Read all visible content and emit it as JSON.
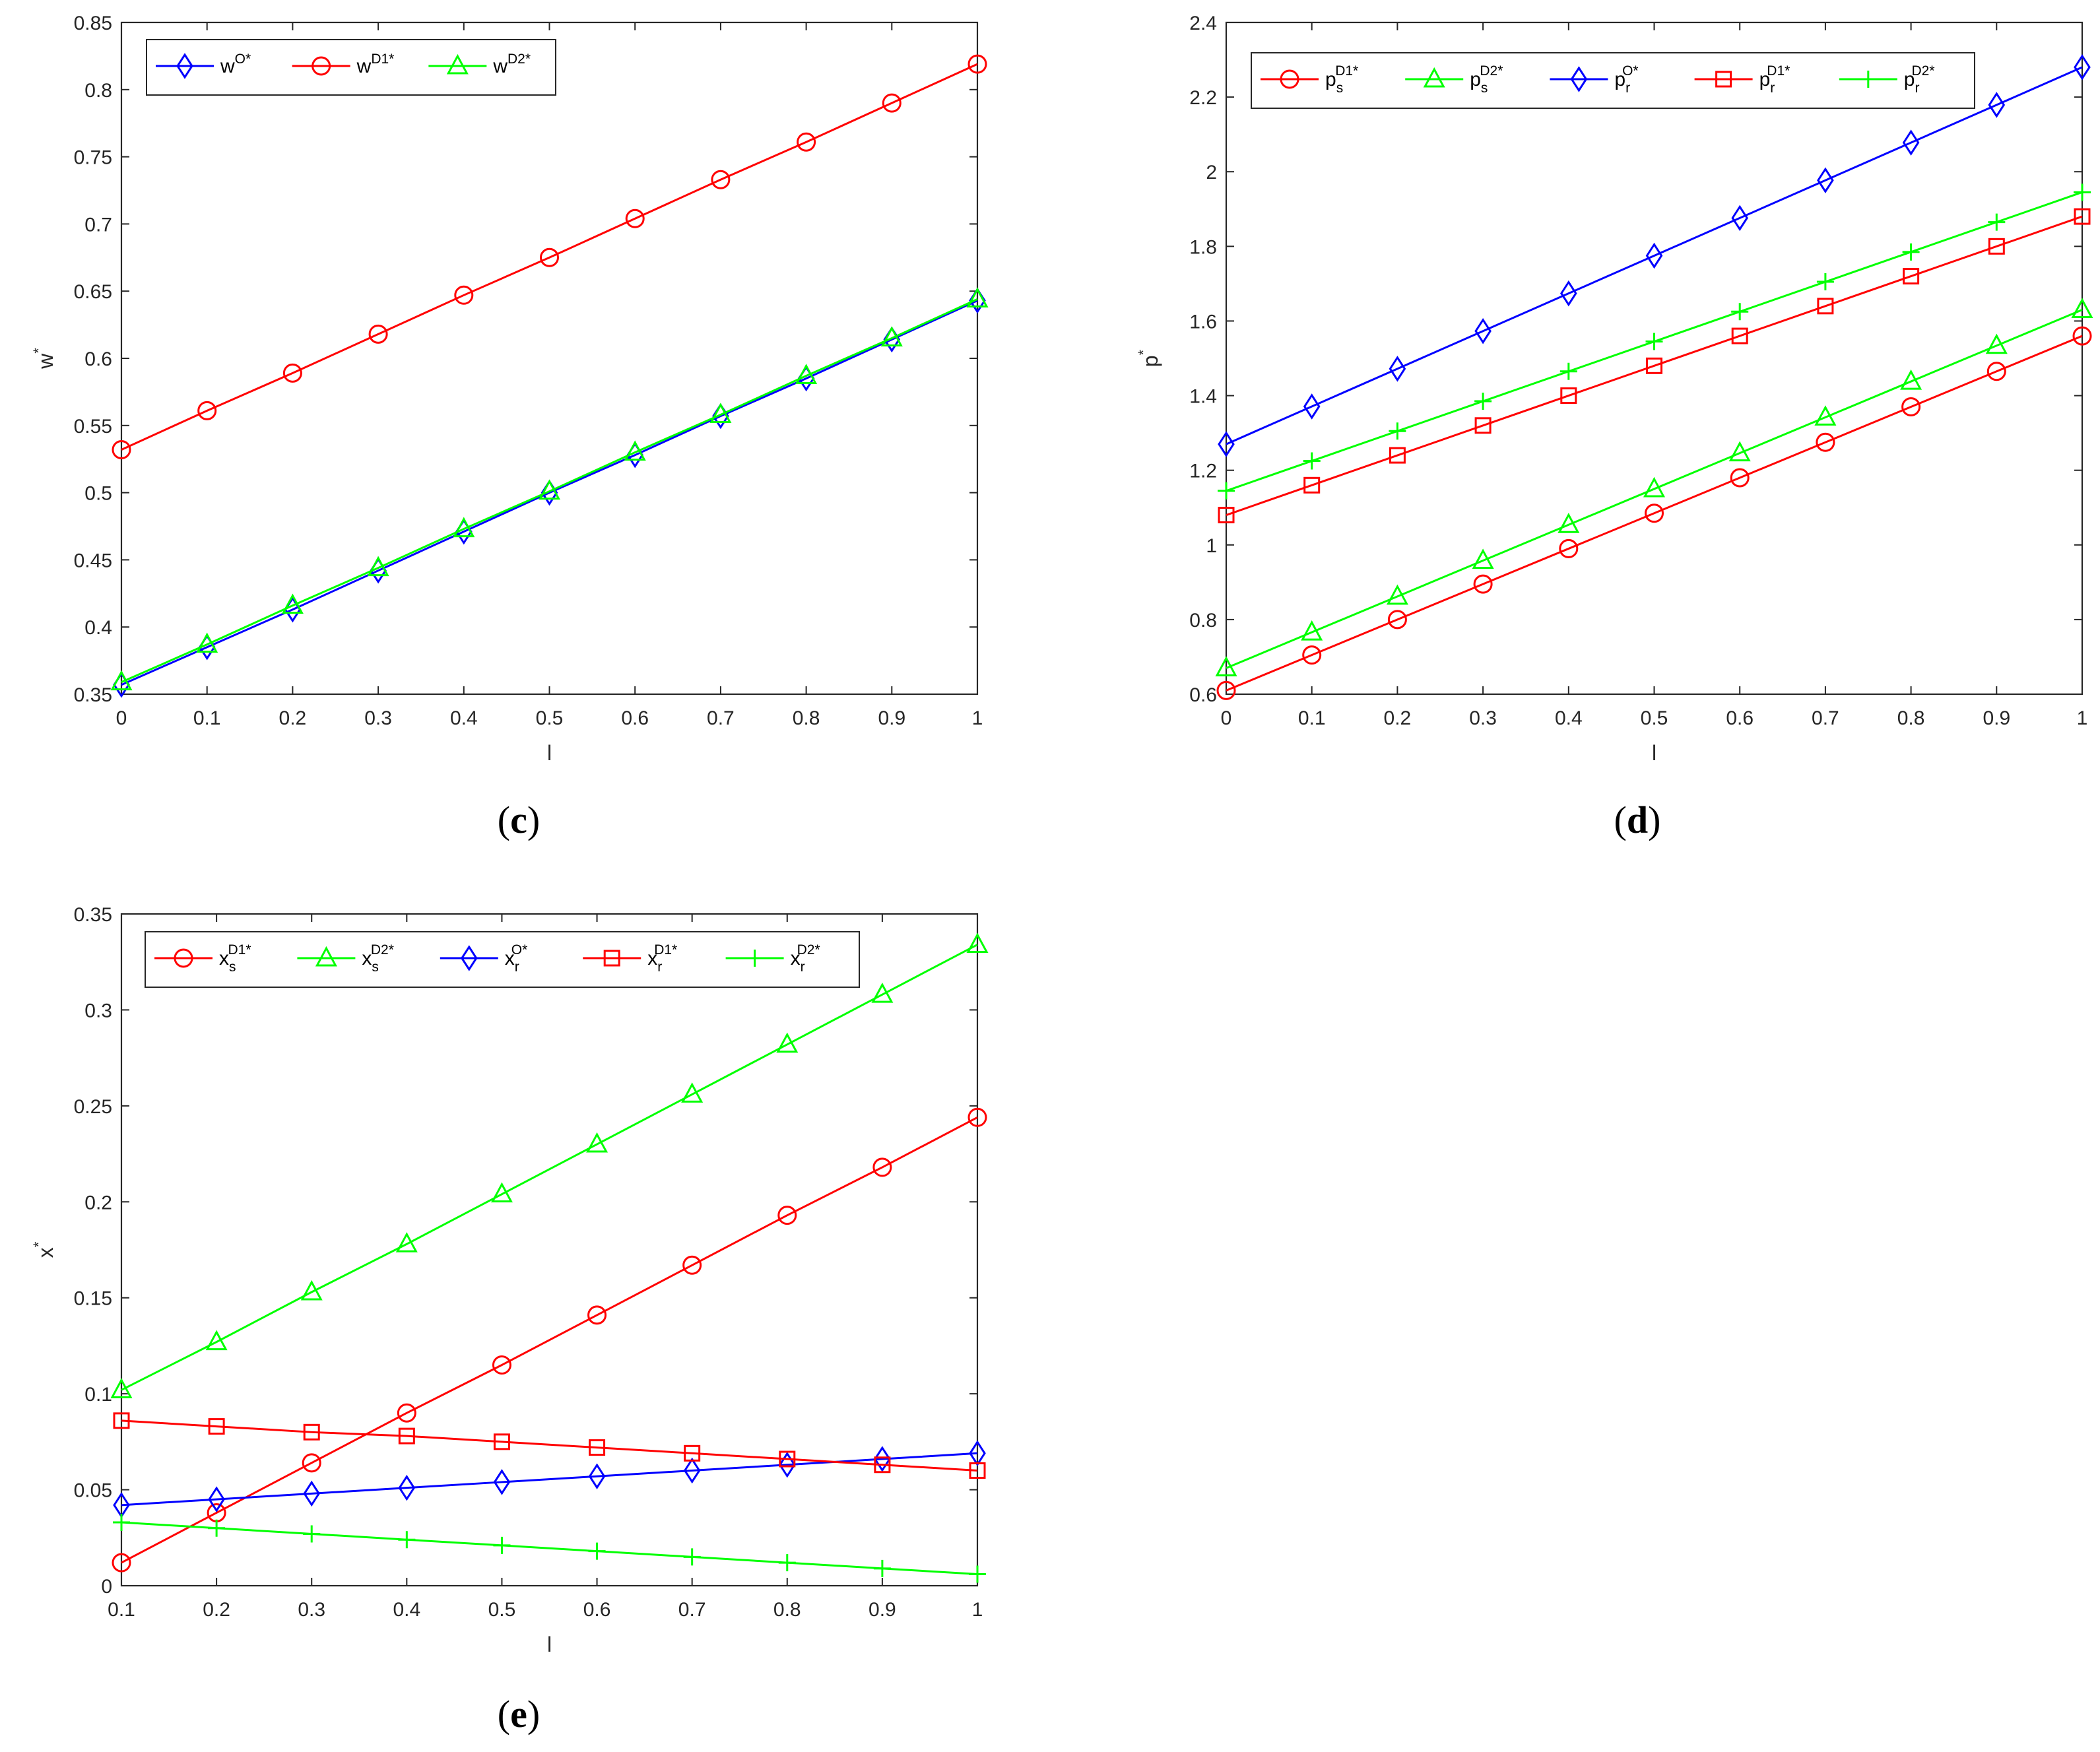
{
  "chart_data": [
    {
      "id": "c",
      "type": "line",
      "panel_label": "c",
      "xlabel": "l",
      "ylabel": "w",
      "ylabel_sup": "*",
      "xlim": [
        0,
        1
      ],
      "ylim": [
        0.35,
        0.85
      ],
      "xticks": [
        "0",
        "0.1",
        "0.2",
        "0.3",
        "0.4",
        "0.5",
        "0.6",
        "0.7",
        "0.8",
        "0.9",
        "1"
      ],
      "yticks": [
        "0.35",
        "0.4",
        "0.45",
        "0.5",
        "0.55",
        "0.6",
        "0.65",
        "0.7",
        "0.75",
        "0.8",
        "0.85"
      ],
      "legend_position": "top-left",
      "x": [
        0,
        0.1,
        0.2,
        0.3,
        0.4,
        0.5,
        0.6,
        0.7,
        0.8,
        0.9,
        1
      ],
      "series": [
        {
          "name": "w^{O*}",
          "label": {
            "base": "w",
            "sup": "O*",
            "sub": ""
          },
          "color": "#0000ff",
          "marker": "diamond",
          "values": [
            0.357,
            0.385,
            0.413,
            0.442,
            0.471,
            0.5,
            0.528,
            0.557,
            0.585,
            0.614,
            0.643
          ]
        },
        {
          "name": "w^{D1*}",
          "label": {
            "base": "w",
            "sup": "D1*",
            "sub": ""
          },
          "color": "#ff0000",
          "marker": "circle",
          "values": [
            0.532,
            0.561,
            0.589,
            0.618,
            0.647,
            0.675,
            0.704,
            0.733,
            0.761,
            0.79,
            0.819
          ]
        },
        {
          "name": "w^{D2*}",
          "label": {
            "base": "w",
            "sup": "D2*",
            "sub": ""
          },
          "color": "#00ff00",
          "marker": "triangle",
          "values": [
            0.359,
            0.387,
            0.416,
            0.444,
            0.473,
            0.501,
            0.53,
            0.558,
            0.587,
            0.615,
            0.644
          ]
        }
      ]
    },
    {
      "id": "d",
      "type": "line",
      "panel_label": "d",
      "xlabel": "l",
      "ylabel": "p",
      "ylabel_sup": "*",
      "xlim": [
        0,
        1
      ],
      "ylim": [
        0.6,
        2.4
      ],
      "xticks": [
        "0",
        "0.1",
        "0.2",
        "0.3",
        "0.4",
        "0.5",
        "0.6",
        "0.7",
        "0.8",
        "0.9",
        "1"
      ],
      "yticks": [
        "0.6",
        "0.8",
        "1",
        "1.2",
        "1.4",
        "1.6",
        "1.8",
        "2",
        "2.2",
        "2.4"
      ],
      "legend_position": "top-left",
      "x": [
        0,
        0.1,
        0.2,
        0.3,
        0.4,
        0.5,
        0.6,
        0.7,
        0.8,
        0.9,
        1
      ],
      "series": [
        {
          "name": "p_s^{D1*}",
          "label": {
            "base": "p",
            "sup": "D1*",
            "sub": "s"
          },
          "color": "#ff0000",
          "marker": "circle",
          "values": [
            0.61,
            0.705,
            0.8,
            0.895,
            0.99,
            1.085,
            1.18,
            1.275,
            1.37,
            1.465,
            1.56
          ]
        },
        {
          "name": "p_s^{D2*}",
          "label": {
            "base": "p",
            "sup": "D2*",
            "sub": "s"
          },
          "color": "#00ff00",
          "marker": "triangle",
          "values": [
            0.67,
            0.766,
            0.862,
            0.958,
            1.054,
            1.15,
            1.246,
            1.342,
            1.438,
            1.534,
            1.63
          ]
        },
        {
          "name": "p_r^{O*}",
          "label": {
            "base": "p",
            "sup": "O*",
            "sub": "r"
          },
          "color": "#0000ff",
          "marker": "diamond",
          "values": [
            1.27,
            1.371,
            1.472,
            1.573,
            1.674,
            1.775,
            1.876,
            1.977,
            2.078,
            2.179,
            2.28
          ]
        },
        {
          "name": "p_r^{D1*}",
          "label": {
            "base": "p",
            "sup": "D1*",
            "sub": "r"
          },
          "color": "#ff0000",
          "marker": "square",
          "values": [
            1.08,
            1.16,
            1.24,
            1.32,
            1.4,
            1.48,
            1.56,
            1.64,
            1.72,
            1.8,
            1.88
          ]
        },
        {
          "name": "p_r^{D2*}",
          "label": {
            "base": "p",
            "sup": "D2*",
            "sub": "r"
          },
          "color": "#00ff00",
          "marker": "plus",
          "values": [
            1.145,
            1.225,
            1.305,
            1.385,
            1.465,
            1.545,
            1.625,
            1.705,
            1.785,
            1.865,
            1.945
          ]
        }
      ]
    },
    {
      "id": "e",
      "type": "line",
      "panel_label": "e",
      "xlabel": "l",
      "ylabel": "x",
      "ylabel_sup": "*",
      "xlim": [
        0.1,
        1
      ],
      "ylim": [
        0,
        0.35
      ],
      "xticks": [
        "0.1",
        "0.2",
        "0.3",
        "0.4",
        "0.5",
        "0.6",
        "0.7",
        "0.8",
        "0.9",
        "1"
      ],
      "yticks": [
        "0",
        "0.05",
        "0.1",
        "0.15",
        "0.2",
        "0.25",
        "0.3",
        "0.35"
      ],
      "legend_position": "top",
      "x": [
        0.1,
        0.2,
        0.3,
        0.4,
        0.5,
        0.6,
        0.7,
        0.8,
        0.9,
        1
      ],
      "series": [
        {
          "name": "x_s^{D1*}",
          "label": {
            "base": "x",
            "sup": "D1*",
            "sub": "s"
          },
          "color": "#ff0000",
          "marker": "circle",
          "values": [
            0.012,
            0.038,
            0.064,
            0.09,
            0.115,
            0.141,
            0.167,
            0.193,
            0.218,
            0.244
          ]
        },
        {
          "name": "x_s^{D2*}",
          "label": {
            "base": "x",
            "sup": "D2*",
            "sub": "s"
          },
          "color": "#00ff00",
          "marker": "triangle",
          "values": [
            0.102,
            0.127,
            0.153,
            0.178,
            0.204,
            0.23,
            0.256,
            0.282,
            0.308,
            0.334
          ]
        },
        {
          "name": "x_r^{O*}",
          "label": {
            "base": "x",
            "sup": "O*",
            "sub": "r"
          },
          "color": "#0000ff",
          "marker": "diamond",
          "values": [
            0.042,
            0.045,
            0.048,
            0.051,
            0.054,
            0.057,
            0.06,
            0.063,
            0.066,
            0.069
          ]
        },
        {
          "name": "x_r^{D1*}",
          "label": {
            "base": "x",
            "sup": "D1*",
            "sub": "r"
          },
          "color": "#ff0000",
          "marker": "square",
          "values": [
            0.086,
            0.083,
            0.08,
            0.078,
            0.075,
            0.072,
            0.069,
            0.066,
            0.063,
            0.06
          ]
        },
        {
          "name": "x_r^{D2*}",
          "label": {
            "base": "x",
            "sup": "D2*",
            "sub": "r"
          },
          "color": "#00ff00",
          "marker": "plus",
          "values": [
            0.033,
            0.03,
            0.027,
            0.024,
            0.021,
            0.018,
            0.015,
            0.012,
            0.009,
            0.006
          ]
        }
      ]
    }
  ]
}
